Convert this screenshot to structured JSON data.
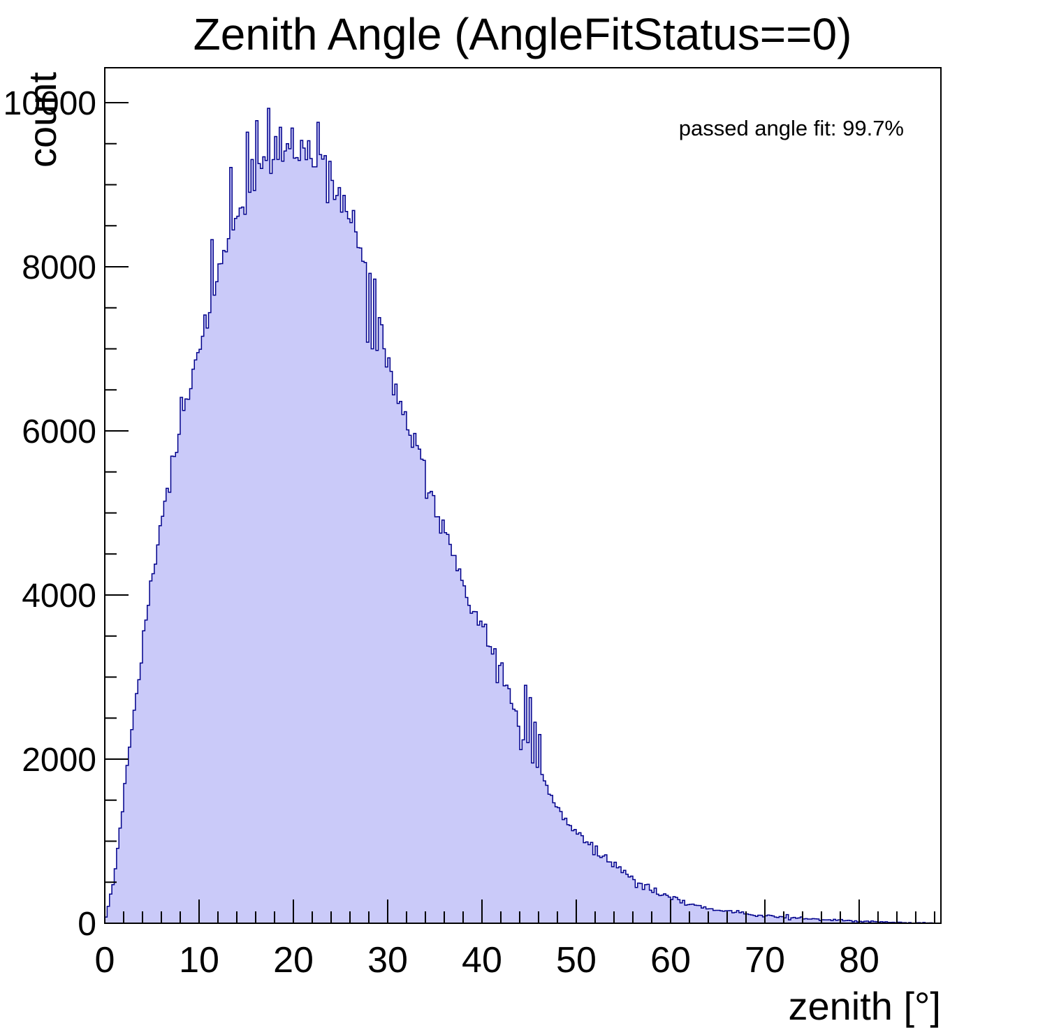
{
  "title": "Zenith Angle (AngleFitStatus==0)",
  "annotation": "passed angle fit: 99.7%",
  "colors": {
    "background": "#ffffff",
    "frame": "#000000",
    "text": "#000000",
    "histogram_fill": "#cacaf9",
    "histogram_line": "#00008b"
  },
  "chart_data": {
    "type": "bar",
    "subtype": "filled-step-histogram",
    "title": "Zenith Angle (AngleFitStatus==0)",
    "xlabel": "zenith [°]",
    "ylabel": "count",
    "xlim": [
      0,
      88.67
    ],
    "ylim": [
      0,
      10425
    ],
    "grid": false,
    "legend": false,
    "annotation": "passed angle fit: 99.7%",
    "passed_angle_fit_percent": 99.7,
    "x_major_ticks": [
      0,
      10,
      20,
      30,
      40,
      50,
      60,
      70,
      80
    ],
    "x_tick_labels": [
      "0",
      "10",
      "20",
      "30",
      "40",
      "50",
      "60",
      "70",
      "80"
    ],
    "x_minor_step": 2,
    "y_major_ticks": [
      0,
      2000,
      4000,
      6000,
      8000,
      10000
    ],
    "y_tick_labels": [
      "0",
      "2000",
      "4000",
      "6000",
      "8000",
      "10000"
    ],
    "y_minor_step": 500,
    "bin_width_deg": 0.25,
    "peak": {
      "zenith_deg": 20,
      "count": 9460
    },
    "envelope_zenith_vs_count": [
      [
        0,
        5
      ],
      [
        1,
        550
      ],
      [
        2,
        1550
      ],
      [
        3,
        2500
      ],
      [
        4,
        3350
      ],
      [
        5,
        4150
      ],
      [
        6,
        4850
      ],
      [
        7,
        5500
      ],
      [
        8,
        6050
      ],
      [
        9,
        6550
      ],
      [
        10,
        7050
      ],
      [
        11,
        7500
      ],
      [
        12,
        7950
      ],
      [
        13,
        8300
      ],
      [
        14,
        8650
      ],
      [
        15,
        8900
      ],
      [
        16,
        9150
      ],
      [
        17,
        9320
      ],
      [
        18,
        9400
      ],
      [
        19,
        9430
      ],
      [
        20,
        9460
      ],
      [
        21,
        9420
      ],
      [
        22,
        9370
      ],
      [
        23,
        9260
      ],
      [
        24,
        9100
      ],
      [
        25,
        8870
      ],
      [
        26,
        8600
      ],
      [
        27,
        8270
      ],
      [
        28,
        7900
      ],
      [
        29,
        7250
      ],
      [
        30,
        6800
      ],
      [
        31,
        6500
      ],
      [
        32,
        6180
      ],
      [
        33,
        5870
      ],
      [
        34,
        5520
      ],
      [
        35,
        5150
      ],
      [
        36,
        4800
      ],
      [
        37,
        4450
      ],
      [
        38,
        4100
      ],
      [
        39,
        3850
      ],
      [
        40,
        3650
      ],
      [
        41,
        3400
      ],
      [
        42,
        3080
      ],
      [
        43,
        2760
      ],
      [
        44,
        2430
      ],
      [
        45,
        2110
      ],
      [
        46,
        1860
      ],
      [
        47,
        1620
      ],
      [
        48,
        1410
      ],
      [
        49,
        1250
      ],
      [
        50,
        1120
      ],
      [
        51,
        1000
      ],
      [
        52,
        905
      ],
      [
        53,
        800
      ],
      [
        54,
        715
      ],
      [
        55,
        625
      ],
      [
        56,
        545
      ],
      [
        57,
        472
      ],
      [
        58,
        415
      ],
      [
        59,
        360
      ],
      [
        60,
        312
      ],
      [
        61,
        270
      ],
      [
        62,
        233
      ],
      [
        63,
        205
      ],
      [
        64,
        182
      ],
      [
        65,
        163
      ],
      [
        66,
        148
      ],
      [
        67,
        133
      ],
      [
        68,
        118
      ],
      [
        69,
        104
      ],
      [
        70,
        92
      ],
      [
        71,
        81
      ],
      [
        72,
        71
      ],
      [
        73,
        62
      ],
      [
        74,
        55
      ],
      [
        75,
        48
      ],
      [
        76,
        42
      ],
      [
        77,
        37
      ],
      [
        78,
        33
      ],
      [
        79,
        29
      ],
      [
        80,
        25
      ],
      [
        81,
        21
      ],
      [
        82,
        16
      ],
      [
        83,
        12
      ],
      [
        84,
        9
      ],
      [
        85,
        7
      ],
      [
        86,
        5
      ],
      [
        87,
        4
      ],
      [
        88,
        3
      ],
      [
        88.67,
        2
      ]
    ],
    "prominent_spikes_zenith_vs_count": [
      [
        11.4,
        8330
      ],
      [
        15.2,
        9640
      ],
      [
        16.1,
        9780
      ],
      [
        17.3,
        9930
      ],
      [
        18.6,
        9700
      ],
      [
        19.9,
        9690
      ],
      [
        22.55,
        9760
      ],
      [
        23.6,
        8780
      ],
      [
        24.35,
        8820
      ],
      [
        27.75,
        7080
      ],
      [
        28.05,
        7920
      ],
      [
        28.3,
        7000
      ],
      [
        28.6,
        7850
      ],
      [
        28.9,
        6980
      ],
      [
        44.6,
        2900
      ],
      [
        45.1,
        2750
      ],
      [
        45.6,
        2450
      ],
      [
        46.2,
        2300
      ]
    ]
  }
}
